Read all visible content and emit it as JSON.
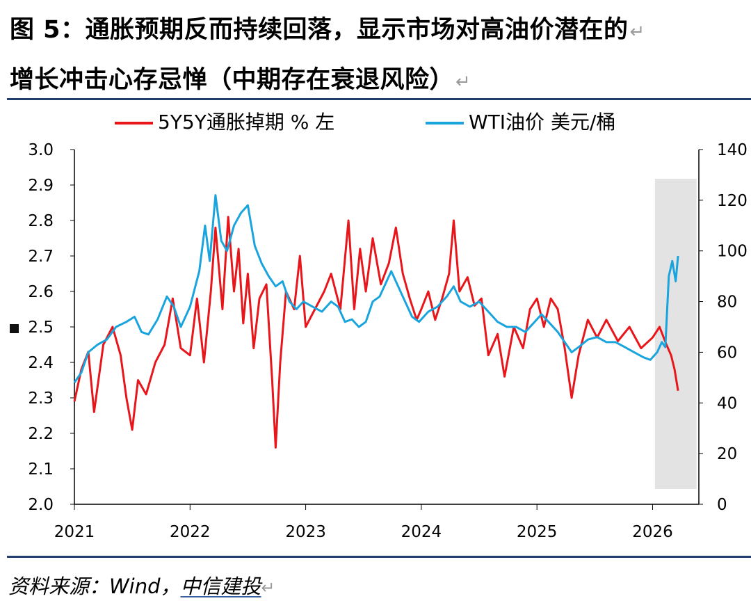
{
  "figure": {
    "title_line1": "图 5：通胀预期反而持续回落，显示市场对高油价潜在的",
    "title_line2": "增长冲击心存忌惮（中期存在衰退风险）",
    "return_mark": "↵",
    "source_prefix": "资料来源：Wind，",
    "source_brand": "中信建投"
  },
  "colors": {
    "rule": "#1f3f6e",
    "series_inflation": "#e8161b",
    "series_wti": "#1aa4dd",
    "shade": "#e3e3e3"
  },
  "chart_data": {
    "type": "line",
    "x_tick_labels": [
      "2021",
      "2022",
      "2023",
      "2024",
      "2025",
      "2026"
    ],
    "x_range": [
      2021.0,
      2026.4
    ],
    "y_left": {
      "ticks": [
        "2.0",
        "2.1",
        "2.2",
        "2.3",
        "2.4",
        "2.5",
        "2.6",
        "2.7",
        "2.8",
        "2.9",
        "3.0"
      ],
      "range": [
        2.0,
        3.0
      ]
    },
    "y_right": {
      "ticks": [
        "0",
        "20",
        "40",
        "60",
        "80",
        "100",
        "120",
        "140"
      ],
      "range": [
        0,
        140
      ]
    },
    "shaded_region": {
      "x_start": 2026.02,
      "x_end": 2026.38
    },
    "legend_position": "top",
    "series": [
      {
        "name": "5Y5Y通胀掉期 % 左",
        "axis": "left",
        "x": [
          2021.0,
          2021.06,
          2021.12,
          2021.17,
          2021.25,
          2021.33,
          2021.4,
          2021.45,
          2021.5,
          2021.55,
          2021.62,
          2021.7,
          2021.78,
          2021.85,
          2021.92,
          2022.0,
          2022.06,
          2022.12,
          2022.18,
          2022.22,
          2022.28,
          2022.33,
          2022.38,
          2022.42,
          2022.46,
          2022.5,
          2022.55,
          2022.6,
          2022.66,
          2022.71,
          2022.74,
          2022.78,
          2022.83,
          2022.9,
          2022.95,
          2023.0,
          2023.08,
          2023.16,
          2023.22,
          2023.3,
          2023.37,
          2023.42,
          2023.47,
          2023.52,
          2023.58,
          2023.65,
          2023.72,
          2023.78,
          2023.84,
          2023.9,
          2023.96,
          2024.0,
          2024.06,
          2024.12,
          2024.18,
          2024.24,
          2024.28,
          2024.33,
          2024.4,
          2024.46,
          2024.52,
          2024.58,
          2024.66,
          2024.72,
          2024.8,
          2024.88,
          2024.94,
          2025.0,
          2025.06,
          2025.12,
          2025.18,
          2025.24,
          2025.3,
          2025.36,
          2025.44,
          2025.52,
          2025.6,
          2025.7,
          2025.8,
          2025.9,
          2026.0,
          2026.06,
          2026.12,
          2026.16,
          2026.19,
          2026.22
        ],
        "y": [
          2.29,
          2.38,
          2.43,
          2.26,
          2.45,
          2.5,
          2.42,
          2.3,
          2.21,
          2.35,
          2.31,
          2.4,
          2.45,
          2.58,
          2.44,
          2.42,
          2.58,
          2.4,
          2.6,
          2.78,
          2.55,
          2.81,
          2.6,
          2.72,
          2.51,
          2.65,
          2.44,
          2.58,
          2.62,
          2.35,
          2.16,
          2.4,
          2.6,
          2.55,
          2.7,
          2.5,
          2.55,
          2.6,
          2.65,
          2.55,
          2.8,
          2.55,
          2.72,
          2.6,
          2.75,
          2.62,
          2.68,
          2.78,
          2.65,
          2.58,
          2.52,
          2.55,
          2.6,
          2.52,
          2.58,
          2.65,
          2.8,
          2.6,
          2.64,
          2.56,
          2.58,
          2.42,
          2.48,
          2.36,
          2.5,
          2.44,
          2.55,
          2.58,
          2.5,
          2.58,
          2.55,
          2.44,
          2.3,
          2.42,
          2.52,
          2.47,
          2.52,
          2.46,
          2.5,
          2.44,
          2.47,
          2.5,
          2.45,
          2.42,
          2.38,
          2.32
        ]
      },
      {
        "name": "WTI油价 美元/桶",
        "axis": "right",
        "x": [
          2021.0,
          2021.06,
          2021.12,
          2021.2,
          2021.28,
          2021.36,
          2021.45,
          2021.52,
          2021.58,
          2021.64,
          2021.72,
          2021.8,
          2021.86,
          2021.92,
          2022.0,
          2022.08,
          2022.13,
          2022.17,
          2022.22,
          2022.27,
          2022.32,
          2022.38,
          2022.44,
          2022.5,
          2022.56,
          2022.62,
          2022.68,
          2022.74,
          2022.8,
          2022.86,
          2022.92,
          2022.98,
          2023.06,
          2023.14,
          2023.22,
          2023.28,
          2023.34,
          2023.4,
          2023.46,
          2023.52,
          2023.58,
          2023.64,
          2023.7,
          2023.74,
          2023.8,
          2023.86,
          2023.92,
          2023.98,
          2024.06,
          2024.14,
          2024.22,
          2024.28,
          2024.34,
          2024.42,
          2024.5,
          2024.58,
          2024.66,
          2024.74,
          2024.82,
          2024.9,
          2024.98,
          2025.04,
          2025.1,
          2025.18,
          2025.24,
          2025.3,
          2025.36,
          2025.44,
          2025.52,
          2025.6,
          2025.68,
          2025.76,
          2025.84,
          2025.92,
          2025.98,
          2026.04,
          2026.08,
          2026.11,
          2026.14,
          2026.17,
          2026.2,
          2026.22
        ],
        "y": [
          48,
          52,
          60,
          63,
          65,
          70,
          72,
          74,
          68,
          67,
          73,
          82,
          78,
          70,
          78,
          92,
          110,
          96,
          122,
          104,
          100,
          110,
          115,
          118,
          102,
          95,
          90,
          86,
          88,
          80,
          77,
          80,
          78,
          76,
          80,
          78,
          72,
          73,
          70,
          72,
          80,
          82,
          88,
          92,
          86,
          80,
          74,
          72,
          76,
          78,
          82,
          86,
          80,
          78,
          80,
          76,
          72,
          70,
          70,
          68,
          72,
          75,
          72,
          68,
          64,
          60,
          62,
          65,
          66,
          64,
          64,
          62,
          60,
          58,
          57,
          60,
          64,
          62,
          90,
          96,
          88,
          98
        ]
      }
    ]
  }
}
